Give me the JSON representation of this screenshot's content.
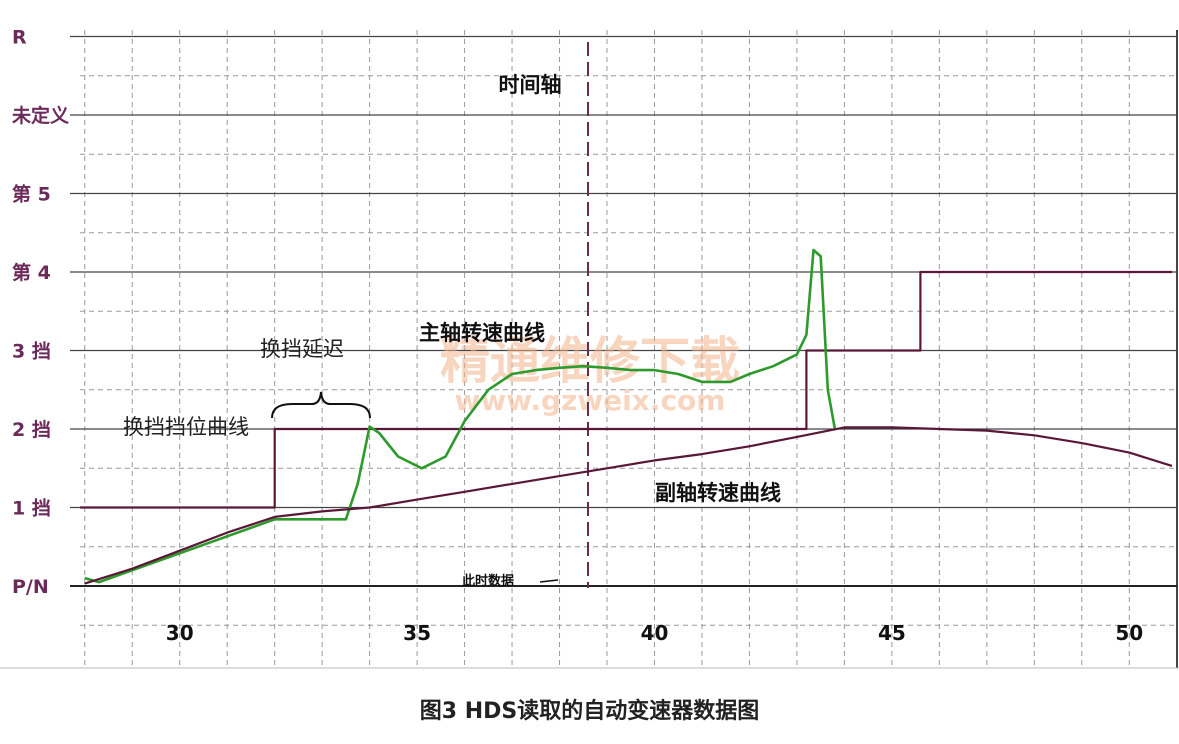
{
  "caption": "图3 HDS读取的自动变速器数据图",
  "chart_data": {
    "type": "line",
    "title": "",
    "xlabel": "",
    "ylabel": "",
    "xlim": [
      27.9,
      50.9
    ],
    "x_ticks": [
      30,
      35,
      40,
      45,
      50
    ],
    "y_levels": [
      "P/N",
      "1 挡",
      "2 挡",
      "3 挡",
      "第 4",
      "第 5",
      "未定义",
      "R"
    ],
    "grid": true,
    "cursor_x": 38.6,
    "cursor_label": "时间轴",
    "cursor_data_label": "此时数据",
    "series": [
      {
        "name": "换挡挡位曲线",
        "color": "#5a1838",
        "x": [
          27.9,
          32.0,
          32.0,
          43.2,
          43.2,
          45.6,
          45.6,
          50.9
        ],
        "y": [
          1,
          1,
          2,
          2,
          3,
          3,
          4,
          4
        ]
      },
      {
        "name": "主轴转速曲线",
        "color": "#2e9a2e",
        "x": [
          28.0,
          28.3,
          32.0,
          33.5,
          33.75,
          34.0,
          34.2,
          34.6,
          35.1,
          35.6,
          36.0,
          36.5,
          37.0,
          37.5,
          38.0,
          38.5,
          39.0,
          39.5,
          40.0,
          40.5,
          41.0,
          41.6,
          42.0,
          42.5,
          43.0,
          43.2,
          43.35,
          43.5,
          43.65,
          43.8
        ],
        "y": [
          0.1,
          0.05,
          0.85,
          0.85,
          1.3,
          2.03,
          1.95,
          1.65,
          1.5,
          1.65,
          2.1,
          2.5,
          2.7,
          2.75,
          2.78,
          2.8,
          2.78,
          2.75,
          2.75,
          2.7,
          2.6,
          2.6,
          2.7,
          2.8,
          2.95,
          3.2,
          4.28,
          4.2,
          2.5,
          2.0
        ]
      },
      {
        "name": "副轴转速曲线",
        "color": "#5a1838",
        "x": [
          28.0,
          29.0,
          30.0,
          31.0,
          32.0,
          33.0,
          34.0,
          35.0,
          36.0,
          37.0,
          38.0,
          39.0,
          40.0,
          41.0,
          42.0,
          43.0,
          44.0,
          45.0,
          46.0,
          47.0,
          48.0,
          49.0,
          50.0,
          50.9
        ],
        "y": [
          0.03,
          0.22,
          0.45,
          0.68,
          0.88,
          0.95,
          1.0,
          1.1,
          1.2,
          1.3,
          1.4,
          1.5,
          1.6,
          1.68,
          1.78,
          1.9,
          2.02,
          2.02,
          2.0,
          1.98,
          1.92,
          1.82,
          1.7,
          1.53
        ]
      }
    ],
    "annotations": [
      "换挡延迟",
      "换挡挡位曲线",
      "主轴转速曲线",
      "副轴转速曲线"
    ]
  },
  "watermark": {
    "text": "精通维修下载",
    "url": "www.gzweix.com"
  }
}
